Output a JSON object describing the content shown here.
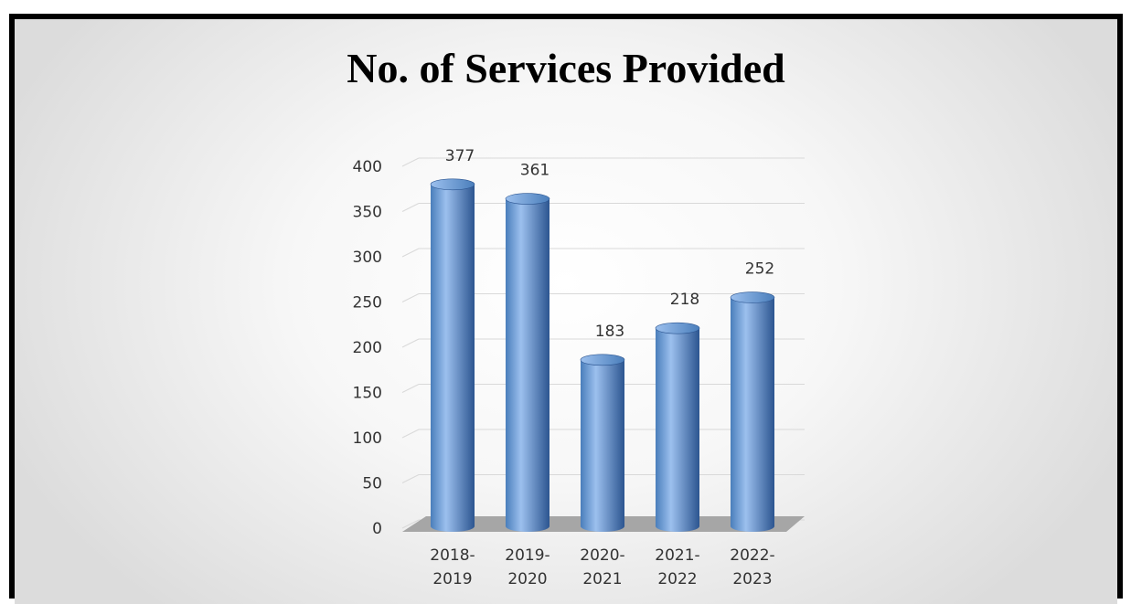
{
  "chart_data": {
    "type": "bar",
    "title": "No. of Services Provided",
    "categories": [
      [
        "2018-",
        "2019"
      ],
      [
        "2019-",
        "2020"
      ],
      [
        "2020-",
        "2021"
      ],
      [
        "2021-",
        "2022"
      ],
      [
        "2022-",
        "2023"
      ]
    ],
    "values": [
      377,
      361,
      183,
      218,
      252
    ],
    "data_labels": [
      "377",
      "361",
      "183",
      "218",
      "252"
    ],
    "y_ticks": [
      "0",
      "50",
      "100",
      "150",
      "200",
      "250",
      "300",
      "350",
      "400"
    ],
    "ylim": [
      0,
      400
    ],
    "xlabel": "",
    "ylabel": "",
    "grid": true,
    "legend": "none",
    "style": "3d-cylinder",
    "colors": {
      "bar": "#4a7ebb",
      "bar_light": "#9cc0ee",
      "bar_dark": "#2c5590",
      "floor": "#a6a6a6",
      "grid": "#d9d9d9"
    }
  }
}
